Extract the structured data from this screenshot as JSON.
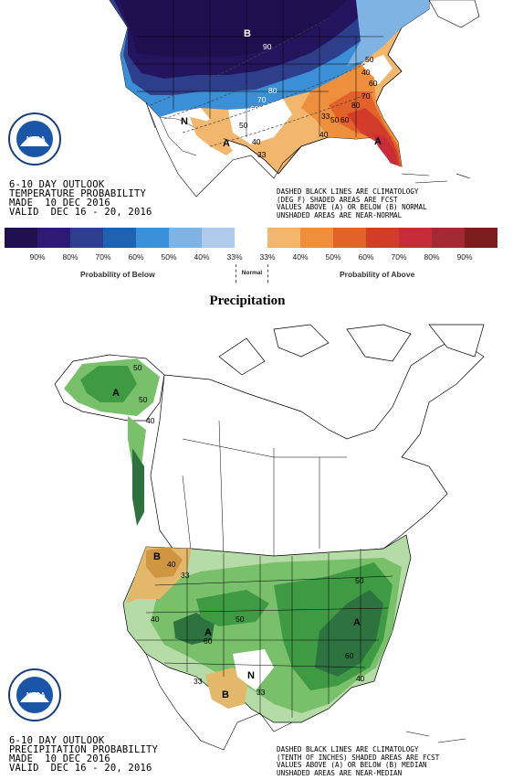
{
  "temperature": {
    "title_lines": [
      "6-10 DAY OUTLOOK",
      "TEMPERATURE PROBABILITY",
      "MADE  10 DEC 2016",
      "VALID  DEC 16 - 20, 2016"
    ],
    "legend_note": [
      "DASHED BLACK LINES ARE CLIMATOLOGY",
      "(DEG F) SHADED AREAS ARE FCST",
      "VALUES ABOVE (A) OR BELOW (B) NORMAL",
      "UNSHADED AREAS ARE NEAR-NORMAL"
    ],
    "map_labels": {
      "B": "B",
      "A": "A",
      "N": "N",
      "c90": "90",
      "c80": "80",
      "c70": "70",
      "c60": "60",
      "c50": "50",
      "c40": "40",
      "c33": "33",
      "e50": "50",
      "e40": "40",
      "e60": "60",
      "e70": "70",
      "e80": "80",
      "e33": "33",
      "s50": "50",
      "s60": "60",
      "s40": "40"
    },
    "scale": {
      "colors": [
        "#1f0f4f",
        "#2e1a73",
        "#2c3e8c",
        "#1f63b0",
        "#3b8fd6",
        "#7fb3e3",
        "#aecbec",
        "#ffffff",
        "#f2b66d",
        "#ed8f3c",
        "#e3622a",
        "#d43c2a",
        "#c72c38",
        "#a22b33",
        "#7a1e1e"
      ],
      "tick_labels": [
        "90%",
        "80%",
        "70%",
        "60%",
        "50%",
        "40%",
        "33%",
        "33%",
        "40%",
        "50%",
        "60%",
        "70%",
        "80%",
        "90%"
      ],
      "below_label": "Probability of Below",
      "normal_label": "Normal",
      "above_label": "Probability of Above"
    }
  },
  "precipitation": {
    "heading": "Precipitation",
    "title_lines": [
      "6-10 DAY OUTLOOK",
      "PRECIPITATION PROBABILITY",
      "MADE  10 DEC 2016",
      "VALID  DEC 16 - 20, 2016"
    ],
    "legend_note": [
      "DASHED BLACK LINES ARE CLIMATOLOGY",
      "(TENTH OF INCHES) SHADED AREAS ARE FCST",
      "VALUES ABOVE (A) OR BELOW (B) MEDIAN",
      "UNSHADED AREAS ARE NEAR-MEDIAN"
    ],
    "map_labels": {
      "A_alaska": "A",
      "c50a": "50",
      "c50b": "50",
      "c40a": "40",
      "B_nw": "B",
      "c40b": "40",
      "c33a": "33",
      "A_rockies": "A",
      "c40c": "40",
      "c50c": "50",
      "c60a": "60",
      "A_east": "A",
      "c50d": "50",
      "c60b": "60",
      "c40d": "40",
      "c33b": "33",
      "B_texas": "B",
      "c33c": "33",
      "N_label": "N"
    }
  },
  "colors": {
    "deep_blue": "#24145e",
    "blue": "#3060b0",
    "light_blue": "#8fbce6",
    "orange": "#eeaa5e",
    "red": "#d9412b",
    "green_light": "#b5dca7",
    "green": "#78c06a",
    "green_dark": "#3f9a44",
    "green_deep": "#2e7240",
    "tan": "#e4b86a"
  }
}
